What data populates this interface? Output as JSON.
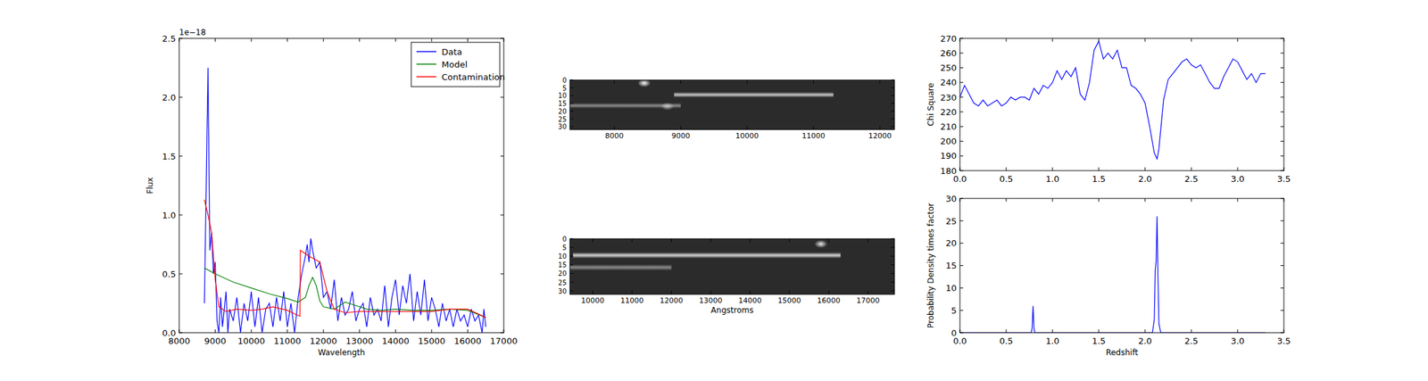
{
  "chart_data": [
    {
      "type": "line",
      "xlabel": "Wavelength",
      "ylabel": "Flux",
      "y_multiplier_text": "1e−18",
      "xlim": [
        8000,
        17000
      ],
      "xticks": [
        8000,
        9000,
        10000,
        11000,
        12000,
        13000,
        14000,
        15000,
        16000,
        17000
      ],
      "ylim": [
        0,
        2.5
      ],
      "yticks": [
        {
          "value": 0,
          "label": "0.0"
        },
        0.5,
        {
          "value": 1,
          "label": "1.0"
        },
        1.5,
        {
          "value": 2,
          "label": "2.0"
        },
        2.5
      ],
      "legend": "upper-right",
      "series": [
        {
          "name": "Data",
          "color": "#0000ff",
          "x": [
            8700,
            8800,
            8850,
            8900,
            8950,
            9000,
            9050,
            9100,
            9150,
            9200,
            9300,
            9350,
            9400,
            9500,
            9600,
            9700,
            9800,
            9900,
            10000,
            10100,
            10200,
            10300,
            10400,
            10500,
            10600,
            10700,
            10800,
            10900,
            11000,
            11100,
            11200,
            11300,
            11400,
            11500,
            11550,
            11600,
            11650,
            11700,
            11800,
            11900,
            12000,
            12100,
            12200,
            12300,
            12400,
            12500,
            12600,
            12700,
            12800,
            12900,
            13000,
            13100,
            13200,
            13300,
            13400,
            13500,
            13600,
            13700,
            13800,
            13900,
            14000,
            14100,
            14200,
            14300,
            14400,
            14500,
            14600,
            14700,
            14800,
            14900,
            15000,
            15100,
            15200,
            15300,
            15400,
            15500,
            15600,
            15700,
            15800,
            15900,
            16000,
            16100,
            16200,
            16300,
            16400,
            16450,
            16500
          ],
          "values": [
            0.25,
            2.25,
            0.7,
            0.85,
            0.5,
            0.6,
            0.1,
            0.0,
            0.3,
            0.05,
            0.35,
            0.0,
            0.2,
            0.1,
            0.3,
            0.0,
            0.25,
            0.1,
            0.35,
            0.05,
            0.3,
            0.0,
            0.2,
            0.25,
            0.05,
            0.3,
            0.1,
            0.35,
            0.05,
            0.25,
            0.0,
            0.3,
            0.5,
            0.65,
            0.75,
            0.6,
            0.8,
            0.7,
            0.55,
            0.6,
            0.3,
            0.35,
            0.2,
            0.45,
            0.1,
            0.3,
            0.15,
            0.2,
            0.35,
            0.1,
            0.2,
            0.25,
            0.05,
            0.3,
            0.15,
            0.2,
            0.1,
            0.4,
            0.05,
            0.3,
            0.45,
            0.15,
            0.4,
            0.25,
            0.5,
            0.1,
            0.35,
            0.15,
            0.45,
            0.1,
            0.3,
            0.2,
            0.05,
            0.25,
            0.1,
            0.2,
            0.05,
            0.2,
            0.1,
            0.15,
            0.05,
            0.2,
            0.1,
            0.15,
            0.0,
            0.2,
            0.05
          ]
        },
        {
          "name": "Model",
          "color": "#008000",
          "x": [
            8700,
            9000,
            9500,
            10000,
            10500,
            11000,
            11300,
            11500,
            11600,
            11700,
            11800,
            11900,
            12000,
            12300,
            12600,
            12800,
            13200,
            13600,
            14000,
            14500,
            15000,
            15500,
            16000,
            16500
          ],
          "values": [
            0.55,
            0.5,
            0.43,
            0.38,
            0.33,
            0.29,
            0.26,
            0.3,
            0.4,
            0.47,
            0.4,
            0.27,
            0.22,
            0.2,
            0.26,
            0.24,
            0.2,
            0.19,
            0.2,
            0.19,
            0.19,
            0.2,
            0.19,
            0.13
          ]
        },
        {
          "name": "Contamination",
          "color": "#ff0000",
          "x": [
            8700,
            8800,
            8900,
            9000,
            9100,
            9300,
            9600,
            10000,
            10300,
            10600,
            11000,
            11200,
            11350,
            11360,
            11600,
            11900,
            12100,
            12300,
            12600,
            13000,
            14000,
            15000,
            15500,
            16000,
            16500
          ],
          "values": [
            1.13,
            1.0,
            0.85,
            0.45,
            0.22,
            0.18,
            0.2,
            0.19,
            0.2,
            0.22,
            0.19,
            0.16,
            0.14,
            0.7,
            0.65,
            0.6,
            0.35,
            0.2,
            0.17,
            0.18,
            0.18,
            0.18,
            0.2,
            0.2,
            0.13
          ]
        }
      ]
    },
    {
      "type": "image",
      "xlim": [
        7330,
        12220
      ],
      "xticks": [
        8000,
        9000,
        10000,
        11000,
        12000
      ],
      "ylim": [
        0,
        32
      ],
      "yticks": [
        0,
        5,
        10,
        15,
        20,
        25,
        30
      ],
      "traces": [
        {
          "row": 9.5,
          "x": [
            8900,
            11300
          ],
          "intensity": 0.75
        },
        {
          "row": 16.5,
          "x": [
            7330,
            9000
          ],
          "intensity": 0.45
        }
      ],
      "spots": [
        {
          "x": 8450,
          "row": 2,
          "intensity": 1
        },
        {
          "x": 8800,
          "row": 17,
          "intensity": 0.6
        }
      ]
    },
    {
      "type": "image",
      "xlabel": "Angstroms",
      "xlim": [
        9420,
        17670
      ],
      "xticks": [
        10000,
        11000,
        12000,
        13000,
        14000,
        15000,
        16000,
        17000
      ],
      "ylim": [
        0,
        32
      ],
      "yticks": [
        0,
        5,
        10,
        15,
        20,
        25,
        30
      ],
      "traces": [
        {
          "row": 9.5,
          "x": [
            9500,
            16300
          ],
          "intensity": 0.8
        },
        {
          "row": 16.5,
          "x": [
            9420,
            12000
          ],
          "intensity": 0.45
        }
      ],
      "spots": [
        {
          "x": 15800,
          "row": 3,
          "intensity": 0.9
        }
      ]
    },
    {
      "type": "line",
      "ylabel": "Chi Square",
      "xlim": [
        0,
        3.5
      ],
      "xticks": [
        {
          "value": 0,
          "label": "0.0"
        },
        0.5,
        {
          "value": 1,
          "label": "1.0"
        },
        1.5,
        {
          "value": 2,
          "label": "2.0"
        },
        2.5,
        {
          "value": 3,
          "label": "3.0"
        },
        3.5
      ],
      "ylim": [
        180,
        270
      ],
      "yticks": [
        180,
        190,
        200,
        210,
        220,
        230,
        240,
        250,
        260,
        270
      ],
      "series": [
        {
          "color": "#0000ff",
          "x": [
            0,
            0.05,
            0.1,
            0.15,
            0.2,
            0.25,
            0.3,
            0.35,
            0.4,
            0.45,
            0.5,
            0.55,
            0.6,
            0.65,
            0.7,
            0.75,
            0.8,
            0.85,
            0.9,
            0.95,
            1.0,
            1.05,
            1.1,
            1.15,
            1.2,
            1.25,
            1.3,
            1.35,
            1.4,
            1.45,
            1.5,
            1.55,
            1.6,
            1.65,
            1.7,
            1.75,
            1.8,
            1.85,
            1.9,
            1.95,
            2.0,
            2.05,
            2.1,
            2.13,
            2.15,
            2.2,
            2.25,
            2.3,
            2.35,
            2.4,
            2.45,
            2.5,
            2.55,
            2.6,
            2.65,
            2.7,
            2.75,
            2.8,
            2.85,
            2.9,
            2.95,
            3.0,
            3.05,
            3.1,
            3.15,
            3.2,
            3.25,
            3.3
          ],
          "values": [
            230,
            238,
            232,
            226,
            224,
            228,
            224,
            226,
            228,
            224,
            226,
            230,
            228,
            230,
            230,
            228,
            236,
            232,
            238,
            236,
            240,
            248,
            242,
            248,
            244,
            250,
            232,
            228,
            240,
            262,
            268,
            256,
            260,
            256,
            262,
            250,
            250,
            238,
            236,
            232,
            226,
            210,
            192,
            188,
            195,
            228,
            242,
            246,
            250,
            254,
            256,
            252,
            250,
            252,
            246,
            240,
            236,
            236,
            244,
            250,
            256,
            254,
            248,
            242,
            246,
            240,
            246,
            246
          ]
        }
      ]
    },
    {
      "type": "line",
      "xlabel": "Redshift",
      "ylabel": "Probability Density times factor",
      "xlim": [
        0,
        3.5
      ],
      "xticks": [
        {
          "value": 0,
          "label": "0.0"
        },
        0.5,
        {
          "value": 1,
          "label": "1.0"
        },
        1.5,
        {
          "value": 2,
          "label": "2.0"
        },
        2.5,
        {
          "value": 3,
          "label": "3.0"
        },
        3.5
      ],
      "ylim": [
        0,
        30
      ],
      "yticks": [
        0,
        5,
        10,
        15,
        20,
        25,
        30
      ],
      "series": [
        {
          "color": "#0000ff",
          "x": [
            0,
            0.77,
            0.78,
            0.79,
            0.8,
            0.81,
            2.08,
            2.1,
            2.11,
            2.12,
            2.13,
            2.14,
            2.15,
            2.17,
            3.3
          ],
          "values": [
            0,
            0,
            1,
            6,
            1,
            0,
            0,
            3,
            14,
            16,
            26,
            12,
            2,
            0,
            0
          ]
        }
      ]
    }
  ]
}
